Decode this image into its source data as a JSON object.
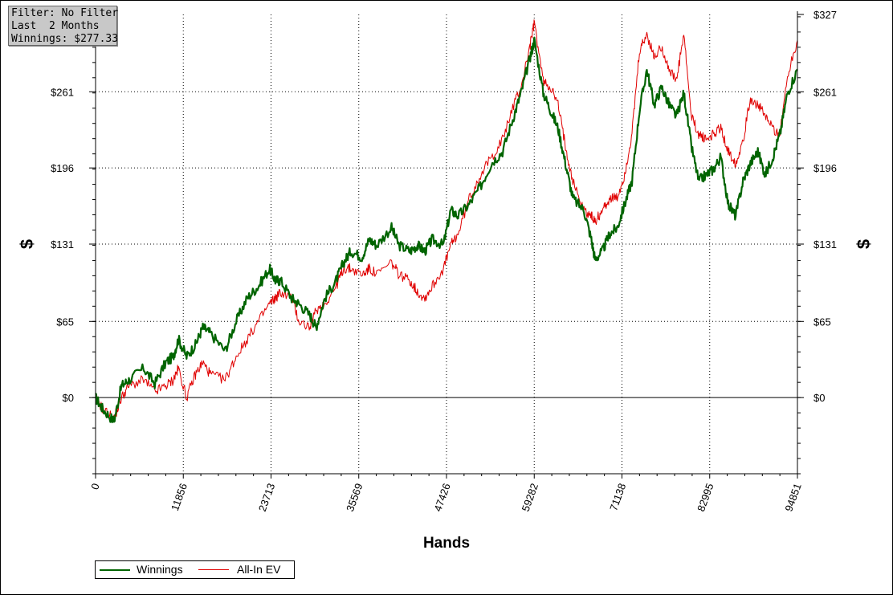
{
  "info_box": {
    "filter": "Filter: No Filter",
    "period": "Last  2 Months",
    "winnings": "Winnings: $277.33"
  },
  "colors": {
    "winnings": "#006400",
    "allin_ev": "#e00000",
    "grid": "#000000",
    "axis": "#000000"
  },
  "chart_data": {
    "type": "line",
    "xlabel": "Hands",
    "ylabel_left": "$",
    "ylabel_right": "$",
    "xlim": [
      0,
      94851
    ],
    "ylim": [
      -65,
      327
    ],
    "x_ticks": [
      0,
      11856,
      23713,
      35569,
      47426,
      59282,
      71138,
      82995,
      94851
    ],
    "x_tick_labels": [
      "0",
      "11856",
      "23713",
      "35569",
      "47426",
      "59282",
      "71138",
      "82995",
      "94851"
    ],
    "y_ticks": [
      0,
      65,
      131,
      196,
      261,
      327
    ],
    "y_tick_labels": [
      "$0",
      "$65",
      "$131",
      "$196",
      "$261",
      "$327"
    ],
    "grid": true,
    "legend_position": "bottom-left",
    "series": [
      {
        "name": "Winnings",
        "x": [
          0,
          1000,
          2500,
          3500,
          4500,
          6500,
          8000,
          9500,
          10500,
          11200,
          12300,
          13500,
          14500,
          15500,
          17500,
          19000,
          20500,
          22000,
          23500,
          24300,
          25000,
          26500,
          27500,
          29000,
          29800,
          31000,
          32500,
          33500,
          34500,
          36000,
          37000,
          38000,
          40000,
          41000,
          42500,
          43500,
          44500,
          45500,
          47000,
          48000,
          49000,
          50500,
          52000,
          53500,
          55000,
          56500,
          57500,
          58700,
          59300,
          60500,
          61500,
          62500,
          63500,
          64500,
          66000,
          67000,
          67500,
          68500,
          69500,
          70500,
          71500,
          72500,
          73500,
          74500,
          75500,
          76500,
          77500,
          78500,
          79500,
          80500,
          81500,
          82500,
          83500,
          84500,
          85500,
          86500,
          87500,
          88500,
          89500,
          90500,
          91500,
          92500,
          93500,
          94851
        ],
        "values": [
          0,
          -10,
          -20,
          10,
          15,
          25,
          12,
          30,
          35,
          50,
          35,
          45,
          60,
          55,
          40,
          65,
          85,
          95,
          110,
          100,
          100,
          85,
          80,
          70,
          60,
          85,
          100,
          115,
          125,
          120,
          135,
          130,
          145,
          130,
          125,
          130,
          125,
          135,
          130,
          160,
          155,
          165,
          180,
          200,
          210,
          240,
          260,
          290,
          305,
          260,
          245,
          230,
          200,
          170,
          160,
          135,
          118,
          125,
          140,
          145,
          165,
          185,
          245,
          280,
          250,
          265,
          250,
          240,
          260,
          215,
          185,
          190,
          195,
          205,
          165,
          155,
          185,
          200,
          210,
          190,
          205,
          225,
          260,
          280
        ]
      },
      {
        "name": "All-In EV",
        "x": [
          0,
          1000,
          2500,
          3500,
          4500,
          6500,
          8000,
          9500,
          10500,
          11200,
          12300,
          13500,
          14500,
          15500,
          17500,
          19000,
          20500,
          22000,
          23500,
          24300,
          25000,
          26500,
          27500,
          29000,
          29800,
          31000,
          32500,
          33500,
          34500,
          36000,
          37000,
          38000,
          40000,
          41000,
          42500,
          43500,
          44500,
          45500,
          47000,
          48000,
          49000,
          50500,
          52000,
          53500,
          55000,
          56500,
          57500,
          58700,
          59300,
          60500,
          61500,
          62500,
          63500,
          64500,
          66000,
          67000,
          67500,
          68500,
          69500,
          70500,
          71500,
          72500,
          73500,
          74500,
          75500,
          76500,
          77500,
          78500,
          79500,
          80500,
          81500,
          82500,
          83500,
          84500,
          85500,
          86500,
          87500,
          88500,
          89500,
          90500,
          91500,
          92500,
          93500,
          94851
        ],
        "values": [
          0,
          -10,
          -18,
          0,
          10,
          15,
          5,
          10,
          15,
          25,
          0,
          20,
          30,
          20,
          15,
          35,
          50,
          65,
          80,
          85,
          90,
          85,
          65,
          60,
          75,
          80,
          95,
          110,
          110,
          105,
          110,
          105,
          115,
          105,
          100,
          90,
          85,
          95,
          110,
          130,
          140,
          170,
          190,
          205,
          220,
          250,
          265,
          300,
          320,
          270,
          265,
          250,
          215,
          185,
          160,
          155,
          150,
          160,
          170,
          170,
          190,
          225,
          295,
          310,
          290,
          300,
          280,
          270,
          310,
          240,
          225,
          220,
          225,
          230,
          210,
          200,
          220,
          255,
          250,
          240,
          230,
          225,
          275,
          305
        ]
      }
    ]
  }
}
